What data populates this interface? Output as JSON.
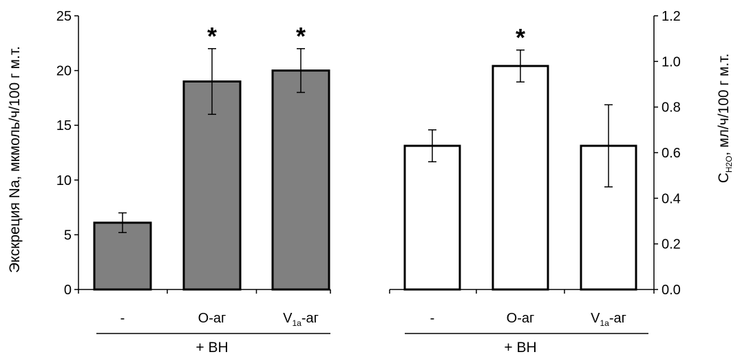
{
  "chart_data": [
    {
      "type": "bar",
      "categories": [
        "-",
        "O-аг",
        "V1a-аг"
      ],
      "category_parts": [
        {
          "main": "-",
          "sub": ""
        },
        {
          "main": "O-аг",
          "sub": ""
        },
        {
          "main": "V",
          "sub": "1a",
          "rest": "-аг"
        }
      ],
      "group_label": "+ ВН",
      "values": [
        6.1,
        19.0,
        20.0
      ],
      "errors": [
        0.9,
        3.0,
        2.0
      ],
      "significance": [
        "",
        "*",
        "*"
      ],
      "ylabel": "Экскреция Na, мкмоль/ч/100 г м.т.",
      "yticks": [
        "0",
        "5",
        "10",
        "15",
        "20",
        "25"
      ],
      "ylim": [
        0,
        25
      ],
      "axis_side": "left",
      "bar_color": "#808080",
      "grid": false
    },
    {
      "type": "bar",
      "categories": [
        "-",
        "O-аг",
        "V1a-аг"
      ],
      "category_parts": [
        {
          "main": "-",
          "sub": ""
        },
        {
          "main": "O-аг",
          "sub": ""
        },
        {
          "main": "V",
          "sub": "1a",
          "rest": "-аг"
        }
      ],
      "group_label": "+ ВН",
      "values": [
        0.63,
        0.98,
        0.63
      ],
      "errors": [
        0.07,
        0.07,
        0.18
      ],
      "significance": [
        "",
        "*",
        ""
      ],
      "ylabel_main": "C",
      "ylabel_sub": "H2O",
      "ylabel_rest": ", мл/ч/100 г м.т.",
      "yticks": [
        "0.0",
        "0.2",
        "0.4",
        "0.6",
        "0.8",
        "1.0",
        "1.2"
      ],
      "ylim": [
        0,
        1.2
      ],
      "axis_side": "right",
      "bar_color": "#ffffff",
      "grid": false
    }
  ]
}
